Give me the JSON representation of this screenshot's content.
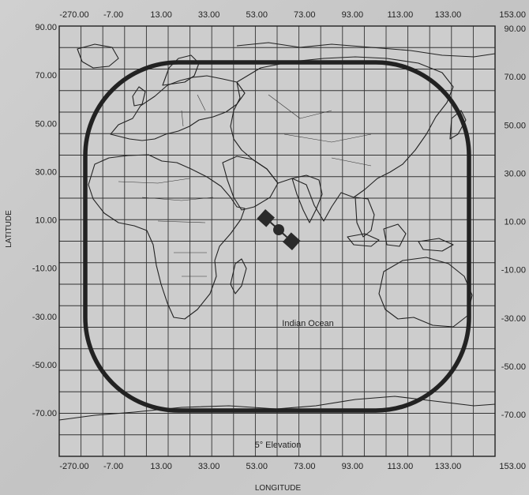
{
  "map": {
    "x_tick_labels": [
      "-270.00",
      "-7.00",
      "13.00",
      "33.00",
      "53.00",
      "73.00",
      "93.00",
      "113.00",
      "133.00",
      "153.00"
    ],
    "y_tick_labels": [
      "90.00",
      "70.00",
      "50.00",
      "30.00",
      "10.00",
      "-10.00",
      "-30.00",
      "-50.00",
      "-70.00"
    ],
    "x_axis_title": "LONGITUDE",
    "y_axis_title": "LATITUDE",
    "region_label": "Indian Ocean",
    "contour_label": "5° Elevation",
    "colors": {
      "background": "#c9c9c9",
      "plot_area": "#cfcfcf",
      "grid": "#333333",
      "coverage_contour": "#222222",
      "satellite": "#2a2a2a"
    }
  }
}
